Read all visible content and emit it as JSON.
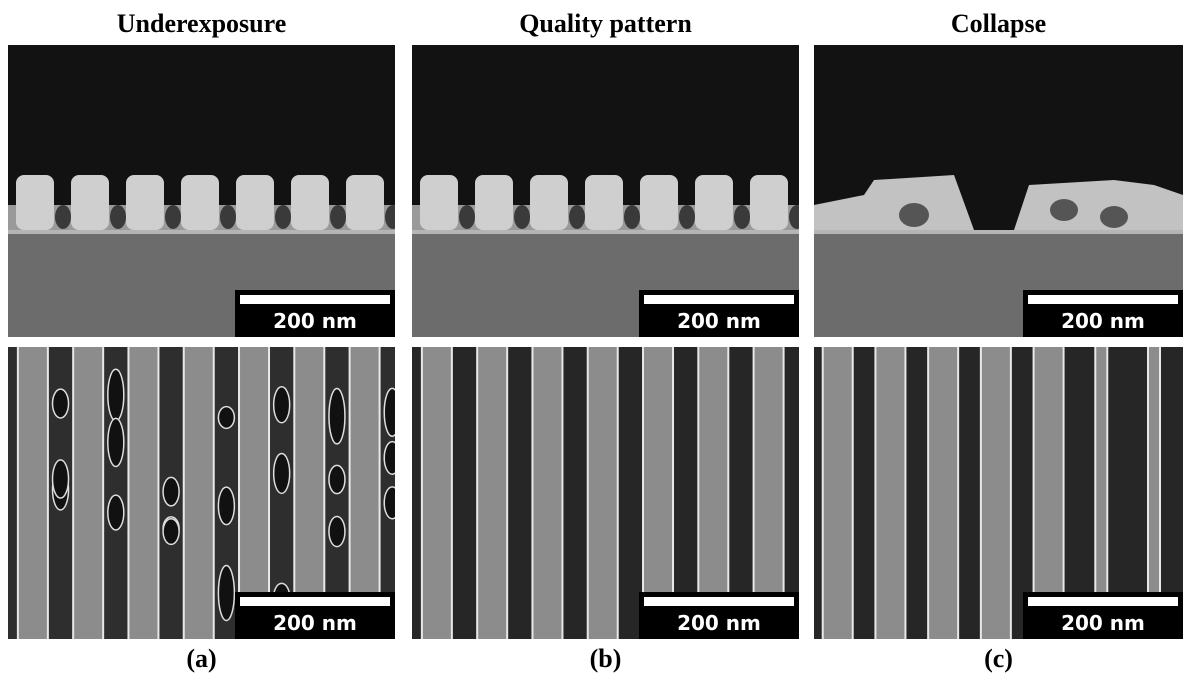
{
  "panels": [
    {
      "title": "Underexposure",
      "images": [
        {
          "scale_label": "200 nm"
        },
        {
          "scale_label": "200 nm"
        }
      ],
      "caption": "(a)"
    },
    {
      "title": "Quality pattern",
      "images": [
        {
          "scale_label": "200 nm"
        },
        {
          "scale_label": "200 nm"
        }
      ],
      "caption": "(b)"
    },
    {
      "title": "Collapse",
      "images": [
        {
          "scale_label": "200 nm"
        },
        {
          "scale_label": "200 nm"
        }
      ],
      "caption": "(c)"
    }
  ]
}
